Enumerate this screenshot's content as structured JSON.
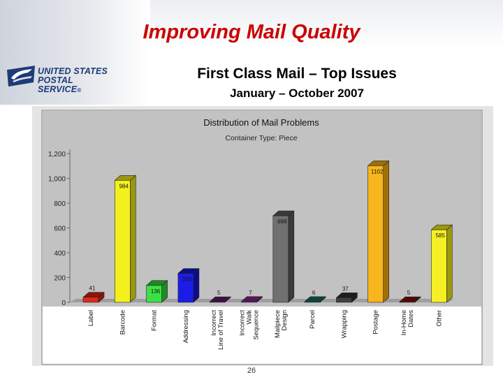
{
  "slide": {
    "title": "Improving Mail Quality",
    "subtitle": "First Class Mail – Top Issues",
    "period": "January – October 2007",
    "page_number": "26",
    "logo_line1": "UNITED STATES",
    "logo_line2": "POSTAL SERVICE",
    "logo_mark": "®",
    "title_color": "#cc0000",
    "logo_color": "#1d3b78"
  },
  "chart_data": {
    "type": "bar",
    "title": "Distribution of Mail Problems",
    "subtitle": "Container Type: Piece",
    "xlabel": "",
    "ylabel": "",
    "ylim": [
      0,
      1200
    ],
    "yticks": [
      "0",
      "200",
      "400",
      "600",
      "800",
      "1,000",
      "1,200"
    ],
    "grid": false,
    "categories": [
      "Label",
      "Barcode",
      "Format",
      "Addressing",
      "Incorrect Line of Travel",
      "Incorrect Walk Sequence",
      "Mailpiece Design",
      "Parcel",
      "Wrapping",
      "Postage",
      "In-Home Dates",
      "Other"
    ],
    "values": [
      41,
      984,
      136,
      233,
      5,
      7,
      698,
      6,
      37,
      1102,
      5,
      585
    ],
    "data_labels": [
      "41",
      "984",
      "136",
      "233",
      "5",
      "7",
      "698",
      "6",
      "37",
      "1102",
      "5",
      "585"
    ],
    "colors": [
      "#dd2a1b",
      "#f4f01d",
      "#3de043",
      "#1c1ce8",
      "#6b1f74",
      "#8a2b8c",
      "#707070",
      "#17706b",
      "#404040",
      "#f8b51c",
      "#8a1010",
      "#f5f026"
    ],
    "colors_dark": [
      "#8c150c",
      "#9a970c",
      "#1f8b22",
      "#0c0c8a",
      "#3e0f45",
      "#541656",
      "#3a3a3a",
      "#0b4441",
      "#1e1e1e",
      "#a06f08",
      "#520707",
      "#9c990e"
    ]
  }
}
